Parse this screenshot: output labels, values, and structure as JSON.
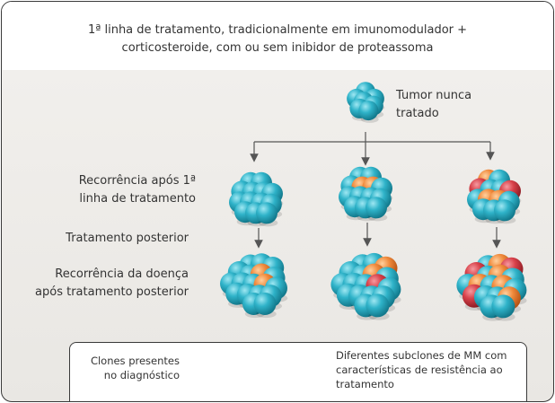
{
  "header": {
    "title": "1ª linha de tratamento, tradicionalmente em imunomodulador +\ncorticosteroide, com ou sem inibidor de proteassoma"
  },
  "labels": {
    "untreated": "Tumor nunca\ntratado",
    "first_recurrence": "Recorrência após 1ª\nlinha de tratamento",
    "later_treatment": "Tratamento posterior",
    "later_recurrence": "Recorrência da doença\napós tratamento posterior"
  },
  "legend": {
    "diagnosis_clones": "Clones presentes\nno diagnóstico",
    "resistant_subclones": "Diferentes subclones de MM com\ncaracterísticas de resistência ao\ntratamento"
  },
  "colors": {
    "teal": "#2fb3c9",
    "orange": "#f08a3c",
    "red": "#d8414a",
    "line": "#555555"
  }
}
